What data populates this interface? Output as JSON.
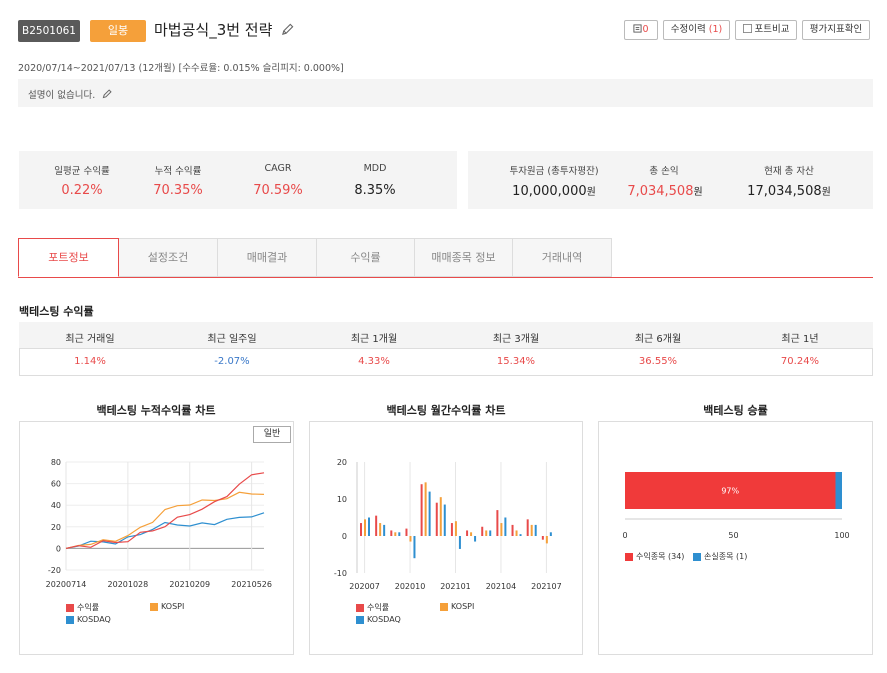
{
  "header": {
    "code": "B2501061",
    "period_type": "일봉",
    "title": "마법공식_3번 전략",
    "buttons": {
      "comments_count": "0",
      "revision_label": "수정이력",
      "revision_count": "(1)",
      "compare_label": "포트비교",
      "evaluate_label": "평가지표확인"
    },
    "date_info": "2020/07/14~2021/07/13 (12개월) [수수료율: 0.015% 슬리피지: 0.000%]",
    "description": "설명이 없습니다."
  },
  "stats_left": [
    {
      "label": "일평균 수익률",
      "value": "0.22%"
    },
    {
      "label": "누적 수익률",
      "value": "70.35%"
    },
    {
      "label": "CAGR",
      "value": "70.59%"
    },
    {
      "label": "MDD",
      "value": "8.35%"
    }
  ],
  "stats_right": [
    {
      "label": "투자원금 (총투자평잔)",
      "value": "10,000,000",
      "unit": "원"
    },
    {
      "label": "총 손익",
      "value": "7,034,508",
      "unit": "원"
    },
    {
      "label": "현재 총 자산",
      "value": "17,034,508",
      "unit": "원"
    }
  ],
  "tabs": [
    "포트정보",
    "설정조건",
    "매매결과",
    "수익률",
    "매매종목 정보",
    "거래내역"
  ],
  "returns": {
    "title": "백테스팅 수익률",
    "headers": [
      "최근 거래일",
      "최근 일주일",
      "최근 1개월",
      "최근 3개월",
      "최근 6개월",
      "최근 1년"
    ],
    "values": [
      "1.14%",
      "-2.07%",
      "4.33%",
      "15.34%",
      "36.55%",
      "70.24%"
    ]
  },
  "charts": {
    "cum_title": "백테스팅 누적수익률 차트",
    "monthly_title": "백테스팅 월간수익률 차트",
    "win_title": "백테스팅 승률",
    "mode_button": "일반",
    "legend_strategy": "수익률",
    "legend_kospi": "KOSPI",
    "legend_kosdaq": "KOSDAQ",
    "win_legend_profit": "수익종목 (34)",
    "win_legend_loss": "손실종목 (1)"
  },
  "colors": {
    "strategy": "#e84a4a",
    "kospi": "#f5a03a",
    "kosdaq": "#2e8fd0",
    "accent": "#e84a4a"
  },
  "chart_data": [
    {
      "type": "line",
      "title": "백테스팅 누적수익률 차트",
      "x_ticks": [
        "20200714",
        "20201028",
        "20210209",
        "20210526"
      ],
      "y_ticks": [
        -20,
        0,
        20,
        40,
        60,
        80
      ],
      "ylim": [
        -20,
        80
      ],
      "series": [
        {
          "name": "수익률",
          "values": [
            0,
            1,
            3,
            6,
            5,
            8,
            13,
            17,
            21,
            27,
            33,
            36,
            42,
            50,
            58,
            68,
            70
          ]
        },
        {
          "name": "KOSPI",
          "values": [
            0,
            3,
            5,
            6,
            8,
            12,
            18,
            26,
            35,
            39,
            42,
            43,
            45,
            47,
            50,
            52,
            50
          ]
        },
        {
          "name": "KOSDAQ",
          "values": [
            0,
            4,
            6,
            5,
            6,
            9,
            13,
            19,
            22,
            23,
            21,
            22,
            24,
            26,
            28,
            31,
            33
          ]
        }
      ]
    },
    {
      "type": "bar",
      "title": "백테스팅 월간수익률 차트",
      "categories": [
        "202007",
        "202008",
        "202009",
        "202010",
        "202011",
        "202012",
        "202101",
        "202102",
        "202103",
        "202104",
        "202105",
        "202106",
        "202107"
      ],
      "x_ticks": [
        "202007",
        "202010",
        "202101",
        "202104",
        "202107"
      ],
      "y_ticks": [
        -10,
        0,
        10,
        20
      ],
      "ylim": [
        -10,
        20
      ],
      "series": [
        {
          "name": "수익률",
          "values": [
            3.5,
            5.5,
            1.5,
            2.0,
            14.0,
            9.0,
            3.5,
            1.5,
            2.5,
            7.0,
            3.0,
            4.5,
            -1.0
          ]
        },
        {
          "name": "KOSPI",
          "values": [
            4.5,
            3.5,
            1.0,
            -1.5,
            14.5,
            10.5,
            4.0,
            1.0,
            1.5,
            3.5,
            1.5,
            3.0,
            -2.0
          ]
        },
        {
          "name": "KOSDAQ",
          "values": [
            5.0,
            3.0,
            1.0,
            -6.0,
            12.0,
            8.5,
            -3.5,
            -1.5,
            1.5,
            5.0,
            0.5,
            3.0,
            1.0
          ]
        }
      ]
    },
    {
      "type": "bar",
      "title": "백테스팅 승률",
      "categories": [
        "승률"
      ],
      "label": "97%",
      "x_ticks": [
        0,
        50,
        100
      ],
      "series": [
        {
          "name": "수익종목 (34)",
          "values": [
            97
          ]
        },
        {
          "name": "손실종목 (1)",
          "values": [
            3
          ]
        }
      ]
    }
  ]
}
